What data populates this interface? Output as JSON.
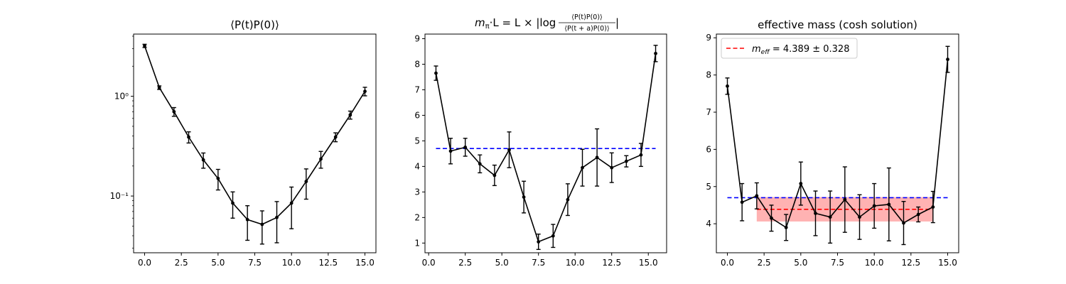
{
  "chart_data": [
    {
      "type": "line",
      "title": "⟨P(t)P(0)⟩",
      "xlabel": "",
      "ylabel": "",
      "yscale": "log",
      "xlim": [
        -0.75,
        15.75
      ],
      "ylim": [
        0.027,
        4.2
      ],
      "xticks": [
        0,
        2.5,
        5,
        7.5,
        10,
        12.5,
        15
      ],
      "xtick_labels": [
        "0.0",
        "2.5",
        "5.0",
        "7.5",
        "10.0",
        "12.5",
        "15.0"
      ],
      "yticks": [
        0.1,
        1
      ],
      "ytick_labels": [
        "10⁻¹",
        "10⁰"
      ],
      "series": [
        {
          "color": "#000000",
          "x": [
            0,
            1,
            2,
            3,
            4,
            5,
            6,
            7,
            8,
            9,
            10,
            11,
            12,
            13,
            14,
            15
          ],
          "y": [
            3.2,
            1.22,
            0.7,
            0.39,
            0.23,
            0.15,
            0.085,
            0.058,
            0.052,
            0.061,
            0.085,
            0.14,
            0.235,
            0.39,
            0.65,
            1.12
          ],
          "err": [
            0.12,
            0.05,
            0.07,
            0.05,
            0.04,
            0.035,
            0.025,
            0.022,
            0.019,
            0.027,
            0.038,
            0.047,
            0.045,
            0.04,
            0.06,
            0.11
          ]
        }
      ]
    },
    {
      "type": "line",
      "title": "m_π·L = L × |log ⟨P(t)P(0)⟩ / ⟨P(t+a)P(0)⟩|",
      "title_parts": {
        "lhs_m": "m",
        "lhs_sub": "π",
        "lhs_rest": "·L = L × |log",
        "num": "⟨P(t)P(0)⟩",
        "den": "⟨P(t + a)P(0)⟩",
        "close": "|"
      },
      "xlabel": "",
      "ylabel": "",
      "xlim": [
        -0.25,
        16.25
      ],
      "ylim": [
        0.62,
        9.18
      ],
      "xticks": [
        0,
        2.5,
        5,
        7.5,
        10,
        12.5,
        15
      ],
      "xtick_labels": [
        "0.0",
        "2.5",
        "5.0",
        "7.5",
        "10.0",
        "12.5",
        "15.0"
      ],
      "yticks": [
        1,
        2,
        3,
        4,
        5,
        6,
        7,
        8,
        9
      ],
      "ytick_labels": [
        "1",
        "2",
        "3",
        "4",
        "5",
        "6",
        "7",
        "8",
        "9"
      ],
      "hlines": [
        {
          "y": 4.7,
          "xmin": 0.5,
          "xmax": 15.5,
          "color": "#0000ff",
          "style": "dashed"
        }
      ],
      "series": [
        {
          "color": "#000000",
          "x": [
            0.5,
            1.5,
            2.5,
            3.5,
            4.5,
            5.5,
            6.5,
            7.5,
            8.5,
            9.5,
            10.5,
            11.5,
            12.5,
            13.5,
            14.5,
            15.5
          ],
          "y": [
            7.65,
            4.6,
            4.75,
            4.1,
            3.65,
            4.65,
            2.8,
            1.05,
            1.28,
            2.7,
            3.95,
            4.35,
            3.95,
            4.2,
            4.45,
            8.42
          ],
          "err": [
            0.28,
            0.5,
            0.35,
            0.35,
            0.4,
            0.7,
            0.62,
            0.3,
            0.45,
            0.62,
            0.72,
            1.12,
            0.58,
            0.22,
            0.45,
            0.32
          ]
        }
      ]
    },
    {
      "type": "line",
      "title": "effective mass (cosh solution)",
      "xlabel": "",
      "ylabel": "",
      "xlim": [
        -0.75,
        15.75
      ],
      "ylim": [
        3.22,
        9.1
      ],
      "xticks": [
        0,
        2.5,
        5,
        7.5,
        10,
        12.5,
        15
      ],
      "xtick_labels": [
        "0.0",
        "2.5",
        "5.0",
        "7.5",
        "10.0",
        "12.5",
        "15.0"
      ],
      "yticks": [
        4,
        5,
        6,
        7,
        8,
        9
      ],
      "ytick_labels": [
        "4",
        "5",
        "6",
        "7",
        "8",
        "9"
      ],
      "legend": {
        "placement": "top-left",
        "label_m": "m",
        "label_sub": "eff",
        "label_value": " = 4.389 ± 0.328",
        "color": "#ff0000"
      },
      "hlines": [
        {
          "y": 4.7,
          "xmin": 0,
          "xmax": 15,
          "color": "#0000ff",
          "style": "dashed"
        },
        {
          "y": 4.389,
          "xmin": 2,
          "xmax": 14,
          "color": "#ff0000",
          "style": "dashed"
        }
      ],
      "band": {
        "xmin": 2,
        "xmax": 14,
        "y_low": 4.061,
        "y_high": 4.717,
        "color": "#ff0000",
        "opacity": 0.3
      },
      "series": [
        {
          "color": "#000000",
          "x": [
            0,
            1,
            2,
            3,
            4,
            5,
            6,
            7,
            8,
            9,
            10,
            11,
            12,
            13,
            14,
            15
          ],
          "y": [
            7.7,
            4.58,
            4.75,
            4.15,
            3.9,
            5.08,
            4.28,
            4.18,
            4.65,
            4.18,
            4.48,
            4.52,
            4.02,
            4.25,
            4.45,
            8.42
          ],
          "err": [
            0.22,
            0.5,
            0.35,
            0.35,
            0.35,
            0.58,
            0.6,
            0.7,
            0.88,
            0.6,
            0.6,
            0.98,
            0.58,
            0.2,
            0.42,
            0.35
          ]
        }
      ]
    }
  ]
}
